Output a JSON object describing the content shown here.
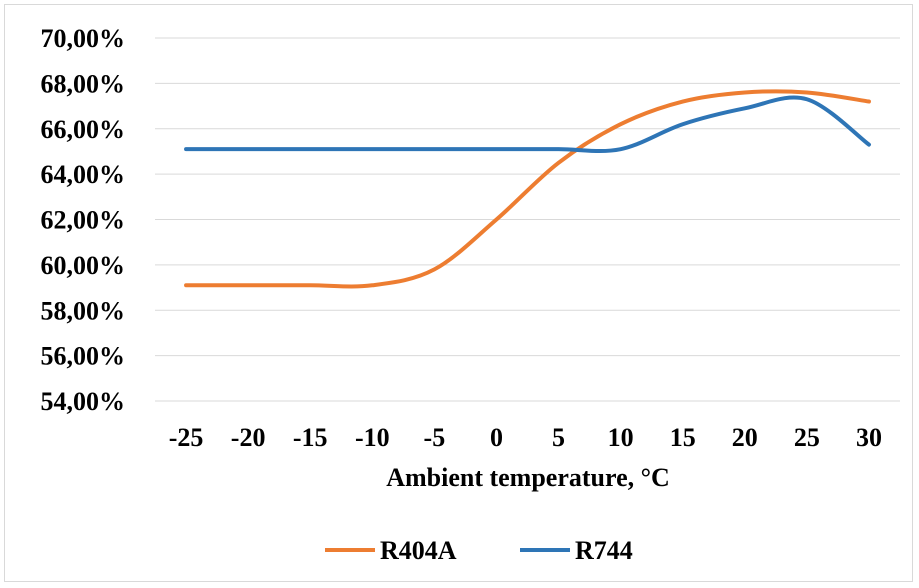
{
  "chart_data": {
    "type": "line",
    "xlabel": "Ambient temperature, °C",
    "ylabel": "",
    "categories": [
      "-25",
      "-20",
      "-15",
      "-10",
      "-5",
      "0",
      "5",
      "10",
      "15",
      "20",
      "25",
      "30"
    ],
    "ylim": [
      54,
      70
    ],
    "yticks": [
      "70,00%",
      "68,00%",
      "66,00%",
      "64,00%",
      "62,00%",
      "60,00%",
      "58,00%",
      "56,00%",
      "54,00%"
    ],
    "ytick_values": [
      70,
      68,
      66,
      64,
      62,
      60,
      58,
      56,
      54
    ],
    "grid": true,
    "legend_position": "bottom",
    "series": [
      {
        "name": "R404A",
        "color": "#ED7D31",
        "values": [
          59.1,
          59.1,
          59.1,
          59.1,
          59.8,
          62.0,
          64.5,
          66.2,
          67.2,
          67.6,
          67.6,
          67.2
        ]
      },
      {
        "name": "R744",
        "color": "#2E75B6",
        "values": [
          65.1,
          65.1,
          65.1,
          65.1,
          65.1,
          65.1,
          65.1,
          65.1,
          66.2,
          66.9,
          67.3,
          65.3
        ]
      }
    ]
  }
}
